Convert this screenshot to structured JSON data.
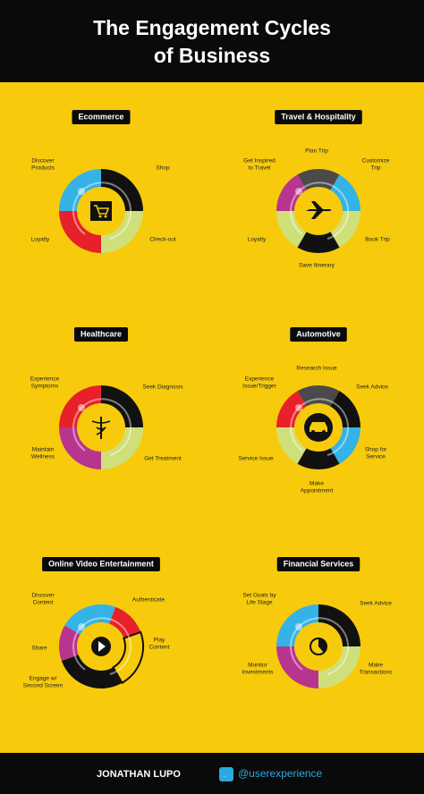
{
  "header": {
    "title": [
      "The Engagement Cycles",
      "of Business"
    ]
  },
  "cycles": [
    {
      "label": "Ecommerce",
      "steps": [
        [
          "Discover",
          "Products"
        ],
        [
          "Shop"
        ],
        [
          "Check-out"
        ],
        [
          "Loyalty"
        ]
      ]
    },
    {
      "label": "Travel & Hospitality",
      "steps": [
        [
          "Get Inspired",
          "to Travel"
        ],
        [
          "Plan Trip"
        ],
        [
          "Customize",
          "Trip"
        ],
        [
          "Book Trip"
        ],
        [
          "Save Itinerary"
        ],
        [
          "Loyalty"
        ]
      ]
    },
    {
      "label": "Healthcare",
      "steps": [
        [
          "Experience",
          "Symptoms"
        ],
        [
          "Seek Diagnosis"
        ],
        [
          "Get Treatment"
        ],
        [
          "Maintain",
          "Wellness"
        ]
      ]
    },
    {
      "label": "Automotive",
      "steps": [
        [
          "Experience",
          "Issue/Trigger"
        ],
        [
          "Research Issue"
        ],
        [
          "Seek Advice"
        ],
        [
          "Shop for",
          "Service"
        ],
        [
          "Make",
          "Appointment"
        ],
        [
          "Service Issue"
        ]
      ]
    },
    {
      "label": "Online Video Entertainment",
      "steps": [
        [
          "Discover",
          "Content"
        ],
        [
          "Authenticate"
        ],
        [
          "Play",
          "Content"
        ],
        [
          "Engage w/",
          "Second Screen"
        ],
        [
          "Share"
        ]
      ]
    },
    {
      "label": "Financial Services",
      "steps": [
        [
          "Set Goals by",
          "Life Stage"
        ],
        [
          "Seek Advice"
        ],
        [
          "Make",
          "Transactions"
        ],
        [
          "Monitor",
          "Investments"
        ]
      ]
    }
  ],
  "footer": {
    "author": "JONATHAN LUPO",
    "handle": "@userexperience"
  }
}
